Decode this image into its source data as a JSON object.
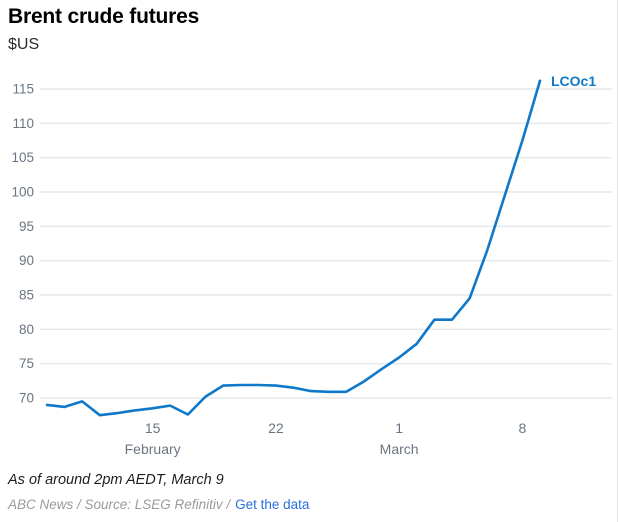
{
  "header": {
    "title": "Brent crude futures",
    "unit": "$US"
  },
  "colors": {
    "series_blue": "#0f78c8",
    "link_blue": "#2a6fdf",
    "tick_label": "#6a7582",
    "gridline": "#e4e9ee"
  },
  "chart_data": {
    "type": "line",
    "title": "Brent crude futures",
    "ylabel": "$US",
    "grid": true,
    "legend_position": "end-of-line",
    "ylim": [
      66.5,
      117.5
    ],
    "y_ticks": [
      70,
      75,
      80,
      85,
      90,
      95,
      100,
      105,
      110,
      115
    ],
    "x": [
      "Feb 9",
      "Feb 10",
      "Feb 11",
      "Feb 12",
      "Feb 13",
      "Feb 14",
      "Feb 15",
      "Feb 16",
      "Feb 17",
      "Feb 18",
      "Feb 19",
      "Feb 20",
      "Feb 21",
      "Feb 22",
      "Feb 23",
      "Feb 24",
      "Feb 25",
      "Feb 26",
      "Feb 27",
      "Feb 28",
      "Mar 1",
      "Mar 2",
      "Mar 3",
      "Mar 4",
      "Mar 5",
      "Mar 6",
      "Mar 7",
      "Mar 8",
      "Mar 9"
    ],
    "x_ticks": [
      {
        "index": 6,
        "label": "15",
        "sublabel": "February"
      },
      {
        "index": 13,
        "label": "22",
        "sublabel": ""
      },
      {
        "index": 20,
        "label": "1",
        "sublabel": "March"
      },
      {
        "index": 27,
        "label": "8",
        "sublabel": ""
      }
    ],
    "series": [
      {
        "name": "LCOc1",
        "color": "#0f78c8",
        "values": [
          69.0,
          68.7,
          69.5,
          67.5,
          67.8,
          68.2,
          68.5,
          68.9,
          67.6,
          70.2,
          71.8,
          71.9,
          71.9,
          71.8,
          71.5,
          71.0,
          70.9,
          70.9,
          72.4,
          74.2,
          75.9,
          77.9,
          81.4,
          81.4,
          84.5,
          91.5,
          99.5,
          107.5,
          116.2
        ]
      }
    ]
  },
  "footer": {
    "asof": "As of around 2pm AEDT, March 9",
    "credit_prefix": "ABC News / Source: LSEG Refinitiv /",
    "link_label": "Get the data"
  }
}
